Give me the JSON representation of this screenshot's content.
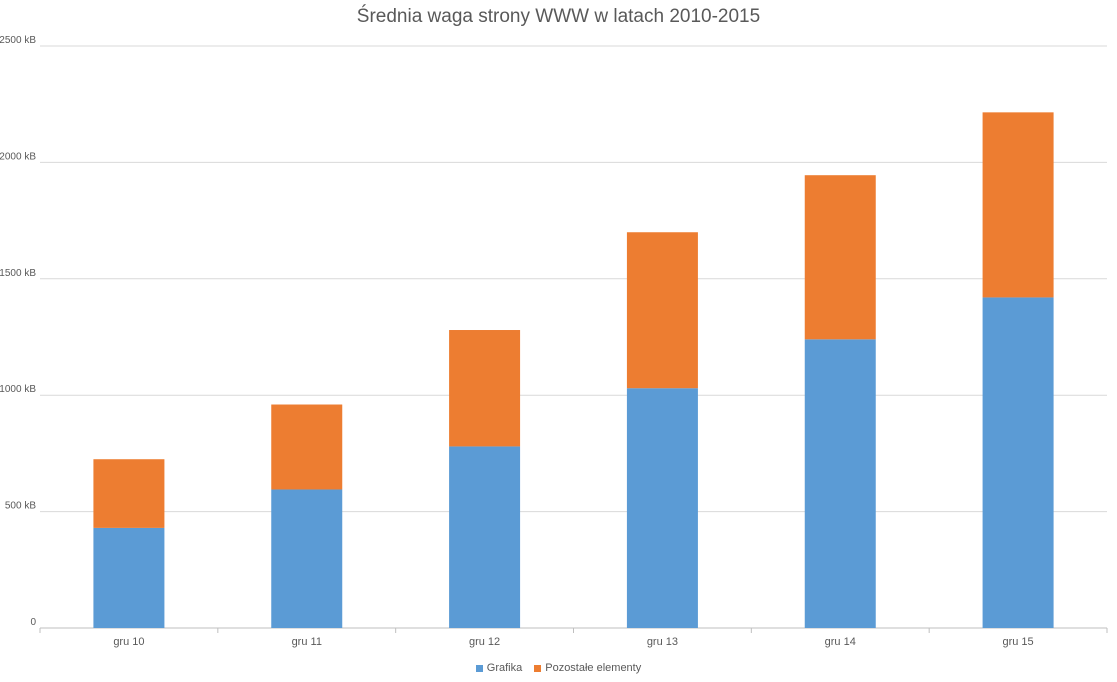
{
  "chart_data": {
    "type": "bar",
    "stacked": true,
    "title": "Średnia waga strony WWW w latach 2010-2015",
    "categories": [
      "gru 10",
      "gru 11",
      "gru 12",
      "gru 13",
      "gru 14",
      "gru 15"
    ],
    "series": [
      {
        "name": "Grafika",
        "color": "#5B9BD5",
        "values": [
          430,
          595,
          780,
          1030,
          1240,
          1420
        ]
      },
      {
        "name": "Pozostałe elementy",
        "color": "#ED7D31",
        "values": [
          295,
          365,
          500,
          670,
          705,
          795
        ]
      }
    ],
    "yticks": [
      {
        "value": 0,
        "label": "0"
      },
      {
        "value": 500,
        "label": "500 kB"
      },
      {
        "value": 1000,
        "label": "1000 kB"
      },
      {
        "value": 1500,
        "label": "1500 kB"
      },
      {
        "value": 2000,
        "label": "2000 kB"
      },
      {
        "value": 2500,
        "label": "2500 kB"
      }
    ],
    "ylim": [
      0,
      2500
    ],
    "grid": true,
    "legend": "bottom"
  }
}
